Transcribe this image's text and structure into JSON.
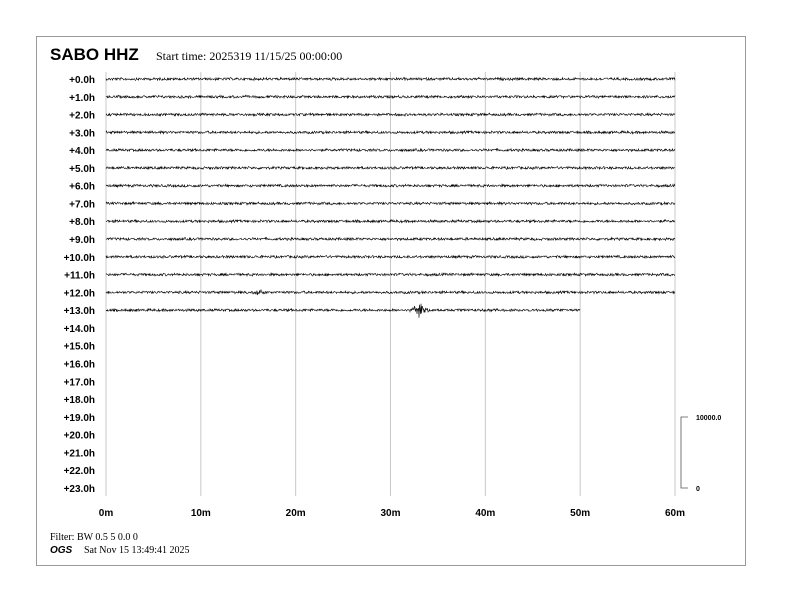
{
  "header": {
    "station": "SABO HHZ",
    "start_time": "Start time: 2025319 11/15/25 00:00:00"
  },
  "footer": {
    "filter": "Filter: BW 0.5 5 0.0 0",
    "org": "OGS",
    "timestamp": "Sat Nov 15 13:49:41 2025"
  },
  "chart_data": {
    "type": "line",
    "title": "SABO HHZ",
    "row_labels": [
      "+0.0h",
      "+1.0h",
      "+2.0h",
      "+3.0h",
      "+4.0h",
      "+5.0h",
      "+6.0h",
      "+7.0h",
      "+8.0h",
      "+9.0h",
      "+10.0h",
      "+11.0h",
      "+12.0h",
      "+13.0h",
      "+14.0h",
      "+15.0h",
      "+16.0h",
      "+17.0h",
      "+18.0h",
      "+19.0h",
      "+20.0h",
      "+21.0h",
      "+22.0h",
      "+23.0h"
    ],
    "x_ticks": [
      "0m",
      "10m",
      "20m",
      "30m",
      "40m",
      "50m",
      "60m"
    ],
    "xlim": [
      0,
      60
    ],
    "rows_with_data": 14,
    "last_row_end_minutes": 50,
    "events": [
      {
        "row": 12,
        "minute": 16,
        "amplitude": "small"
      },
      {
        "row": 13,
        "minute": 33,
        "amplitude": "large"
      }
    ],
    "scale_bar": {
      "top_label": "10000.0",
      "bottom_label": "0"
    },
    "grid": "vertical",
    "trace_color": "#000000",
    "grid_color": "#c8c8c8"
  }
}
